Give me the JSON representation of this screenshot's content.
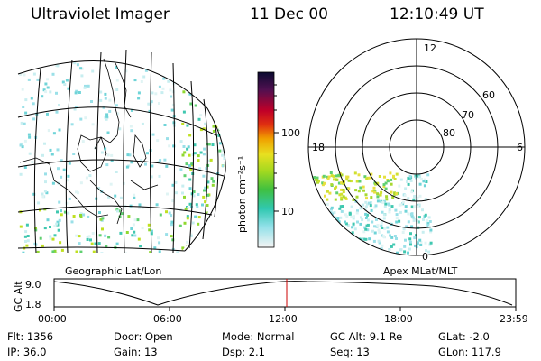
{
  "header": {
    "title": "Ultraviolet Imager",
    "date": "11 Dec 00",
    "time": "12:10:49 UT"
  },
  "colorbar": {
    "label": "photon cm⁻²s⁻¹",
    "ticks": [
      "100",
      "10"
    ]
  },
  "polar_plot": {
    "mlt_labels": {
      "top": "12",
      "left": "18",
      "right": "6",
      "bottom": "0"
    },
    "lat_labels": [
      "60",
      "70",
      "80"
    ]
  },
  "left_panel_label": "Geographic Lat/Lon",
  "right_panel_label": "Apex MLat/MLT",
  "orbit_plot": {
    "ylabel": "GC Alt",
    "y_ticks": [
      "9.0",
      "1.8"
    ],
    "x_ticks": [
      "00:00",
      "06:00",
      "12:00",
      "18:00",
      "23:59"
    ],
    "marker_color": "#cc0000"
  },
  "info": {
    "row1": [
      {
        "label": "Flt:",
        "value": "1356"
      },
      {
        "label": "Door:",
        "value": "Open"
      },
      {
        "label": "Mode:",
        "value": "Normal"
      },
      {
        "label": "GC Alt:",
        "value": "9.1 Re"
      },
      {
        "label": "GLat:",
        "value": "-2.0"
      }
    ],
    "row2": [
      {
        "label": "IP:",
        "value": "36.0"
      },
      {
        "label": "Gain:",
        "value": "13"
      },
      {
        "label": "Dsp:",
        "value": "2.1"
      },
      {
        "label": "Seq:",
        "value": "13"
      },
      {
        "label": "GLon:",
        "value": "117.9"
      }
    ]
  }
}
